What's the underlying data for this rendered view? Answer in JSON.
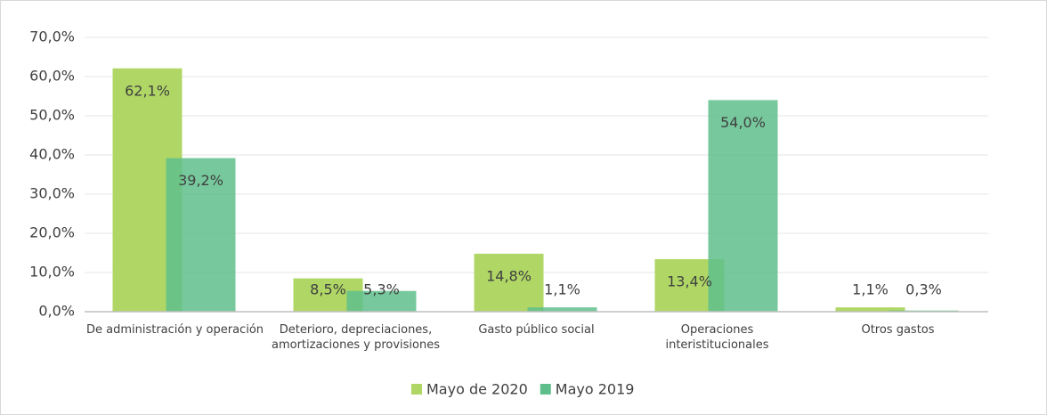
{
  "chart_data": {
    "type": "bar",
    "categories": [
      "De administración y operación",
      "Deterioro, depreciaciones, amortizaciones y provisiones",
      "Gasto público social",
      "Operaciones interistitucionales",
      "Otros gastos"
    ],
    "series": [
      {
        "name": "Mayo de 2020",
        "color": "#b0d765",
        "values": [
          62.1,
          8.5,
          14.8,
          13.4,
          1.1
        ],
        "value_labels": [
          "62,1%",
          "8,5%",
          "14,8%",
          "13,4%",
          "1,1%"
        ]
      },
      {
        "name": "Mayo 2019",
        "color": "#5fbf8c",
        "values": [
          39.2,
          5.3,
          1.1,
          54.0,
          0.3
        ],
        "value_labels": [
          "39,2%",
          "5,3%",
          "1,1%",
          "54,0%",
          "0,3%"
        ]
      }
    ],
    "ylim": [
      0,
      70
    ],
    "yticks": [
      {
        "value": 0,
        "label": "0,0%"
      },
      {
        "value": 10,
        "label": "10,0%"
      },
      {
        "value": 20,
        "label": "20,0%"
      },
      {
        "value": 30,
        "label": "30,0%"
      },
      {
        "value": 40,
        "label": "40,0%"
      },
      {
        "value": 50,
        "label": "50,0%"
      },
      {
        "value": 60,
        "label": "60,0%"
      },
      {
        "value": 70,
        "label": "70,0%"
      }
    ],
    "grid": true,
    "legend": "bottom"
  }
}
